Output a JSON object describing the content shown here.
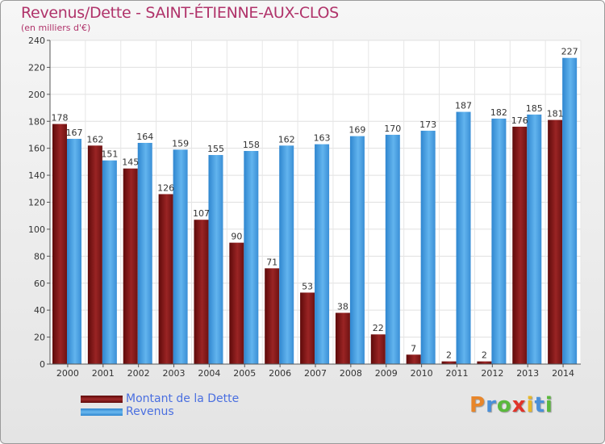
{
  "header": {
    "title": "Revenus/Dette - SAINT-ÉTIENNE-AUX-CLOS",
    "subtitle": "(en milliers d'€)"
  },
  "chart_data": {
    "type": "bar",
    "categories": [
      "2000",
      "2001",
      "2002",
      "2003",
      "2004",
      "2005",
      "2006",
      "2007",
      "2008",
      "2009",
      "2010",
      "2011",
      "2012",
      "2013",
      "2014"
    ],
    "series": [
      {
        "name": "Montant de la Dette",
        "color": "#8b1a1a",
        "values": [
          178,
          162,
          145,
          126,
          107,
          90,
          71,
          53,
          38,
          22,
          7,
          2,
          2,
          176,
          181
        ]
      },
      {
        "name": "Revenus",
        "color": "#4aa3e6",
        "values": [
          167,
          151,
          164,
          159,
          155,
          158,
          162,
          163,
          169,
          170,
          173,
          187,
          182,
          185,
          227
        ]
      }
    ],
    "ylim": [
      0,
      240
    ],
    "yticks": [
      0,
      20,
      40,
      60,
      80,
      100,
      120,
      140,
      160,
      180,
      200,
      220,
      240
    ],
    "grid": true,
    "legend": "bottom-left"
  },
  "legend": {
    "items": [
      {
        "label": "Montant de la Dette"
      },
      {
        "label": "Revenus"
      }
    ]
  },
  "logo": {
    "letters": [
      "P",
      "r",
      "o",
      "x",
      "i",
      "t",
      "i"
    ],
    "colors": [
      "#e8862a",
      "#4a90d9",
      "#5ab93c",
      "#e0332a",
      "#e8b82a",
      "#4a90d9",
      "#5ab93c"
    ]
  }
}
